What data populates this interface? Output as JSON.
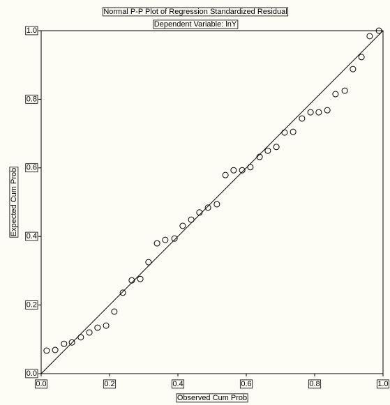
{
  "chart_data": {
    "type": "scatter",
    "title": "Normal P-P Plot of Regression Standardized Residual",
    "subtitle": "Dependent Variable: lnY",
    "x_label": "Observed Cum Prob",
    "y_label": "Expected Cum Prob",
    "xlim": [
      0,
      1
    ],
    "ylim": [
      0,
      1
    ],
    "xticks": [
      {
        "value": 0,
        "label": "0.0"
      },
      0.2,
      0.4,
      0.6,
      0.8,
      {
        "value": 1,
        "label": "1.0"
      }
    ],
    "yticks": [
      {
        "value": 0,
        "label": "0.0"
      },
      0.2,
      0.4,
      0.6,
      0.8,
      {
        "value": 1,
        "label": "1.0"
      }
    ],
    "color": "#000000",
    "x": [
      0.016,
      0.041,
      0.067,
      0.09,
      0.116,
      0.141,
      0.165,
      0.19,
      0.214,
      0.239,
      0.265,
      0.29,
      0.314,
      0.339,
      0.363,
      0.39,
      0.414,
      0.439,
      0.463,
      0.488,
      0.514,
      0.539,
      0.563,
      0.588,
      0.612,
      0.639,
      0.663,
      0.688,
      0.712,
      0.737,
      0.763,
      0.788,
      0.812,
      0.837,
      0.861,
      0.888,
      0.912,
      0.937,
      0.961,
      0.988
    ],
    "values": [
      0.067,
      0.069,
      0.087,
      0.091,
      0.106,
      0.12,
      0.134,
      0.14,
      0.181,
      0.236,
      0.272,
      0.276,
      0.325,
      0.38,
      0.39,
      0.394,
      0.431,
      0.449,
      0.47,
      0.484,
      0.494,
      0.579,
      0.593,
      0.593,
      0.602,
      0.632,
      0.65,
      0.661,
      0.703,
      0.705,
      0.744,
      0.762,
      0.762,
      0.768,
      0.815,
      0.825,
      0.888,
      0.923,
      0.984,
      1.0
    ]
  }
}
